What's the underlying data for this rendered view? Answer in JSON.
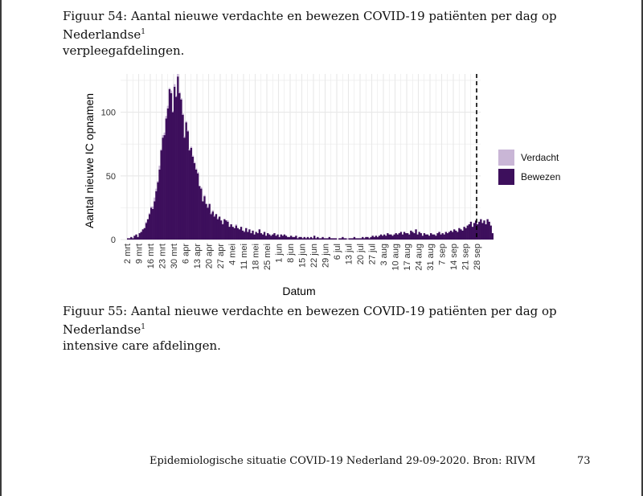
{
  "captions": {
    "fig54_prefix": "Figuur 54: Aantal nieuwe verdachte en bewezen COVID-19 patiënten per dag op Nederlandse",
    "fig54_sup": "1",
    "fig54_line2": "verpleegafdelingen.",
    "fig55_prefix": "Figuur 55: Aantal nieuwe verdachte en bewezen COVID-19 patiënten per dag op Nederlandse",
    "fig55_sup": "1",
    "fig55_line2": "intensive care afdelingen."
  },
  "footer": {
    "text": "Epidemiologische situatie COVID-19 Nederland 29-09-2020. Bron: RIVM",
    "page_number": "73"
  },
  "chart_data": {
    "type": "bar",
    "stacked": true,
    "xlabel": "Datum",
    "ylabel": "Aantal nieuwe IC opnamen",
    "ylim": [
      0,
      130
    ],
    "yticks": [
      0,
      50,
      100
    ],
    "xticks": [
      "2 mrt",
      "9 mrt",
      "16 mrt",
      "23 mrt",
      "30 mrt",
      "6 apr",
      "13 apr",
      "20 apr",
      "27 apr",
      "4 mei",
      "11 mei",
      "18 mei",
      "25 mei",
      "1 jun",
      "8 jun",
      "15 jun",
      "22 jun",
      "29 jun",
      "6 jul",
      "13 jul",
      "20 jul",
      "27 jul",
      "3 aug",
      "10 aug",
      "17 aug",
      "24 aug",
      "31 aug",
      "7 sep",
      "14 sep",
      "21 sep",
      "28 sep"
    ],
    "reference_line": "28 sep",
    "grid": true,
    "legend_position": "right",
    "colors": {
      "Verdacht": "#c9b6d6",
      "Bewezen": "#3d0f5c",
      "grid": "#e8e8e8",
      "refline": "#000000"
    },
    "series": [
      {
        "name": "Verdacht",
        "values": [
          0,
          0,
          0,
          0,
          0,
          0,
          0,
          0,
          0,
          0,
          0,
          0,
          0,
          1,
          0,
          1,
          1,
          2,
          3,
          2,
          1,
          3,
          1,
          2,
          2,
          2,
          2,
          1,
          2,
          1,
          2,
          1,
          2,
          1,
          1,
          1,
          1,
          1,
          1,
          1,
          1,
          1,
          1,
          1,
          1,
          0,
          1,
          0,
          1,
          0,
          1,
          0,
          1,
          1,
          1,
          0,
          1,
          0,
          0,
          1,
          0,
          0,
          1,
          0,
          0,
          0,
          0,
          1,
          0,
          0,
          0,
          0,
          1,
          0,
          0,
          0,
          0,
          0,
          0,
          0,
          0,
          0,
          0,
          0,
          0,
          0,
          0,
          0,
          0,
          0,
          0,
          0,
          0,
          0,
          0,
          0,
          0,
          0,
          0,
          0,
          0,
          0,
          0,
          0,
          0,
          0,
          0,
          0,
          0,
          0,
          0,
          0,
          0,
          0,
          0,
          0,
          0,
          0,
          0,
          0,
          0,
          0,
          0,
          0,
          0,
          0,
          0,
          0,
          0,
          0,
          0,
          0,
          0,
          0,
          1,
          0,
          0,
          0,
          0,
          0,
          0,
          0,
          0,
          0,
          0,
          0,
          0,
          0,
          0,
          0,
          0,
          0,
          0,
          0,
          0,
          0,
          0,
          0,
          0,
          0,
          0,
          0,
          0,
          0,
          0,
          0,
          0,
          0,
          0,
          0,
          0,
          0,
          0,
          0,
          0,
          0,
          0,
          0,
          0,
          0,
          0,
          0,
          0,
          0,
          0,
          0,
          0,
          0,
          0,
          0,
          0,
          0,
          0,
          0,
          0,
          0,
          0,
          0,
          0,
          0,
          0,
          0,
          0,
          0,
          0,
          0,
          0,
          0,
          0,
          0,
          0,
          0,
          0,
          0,
          0,
          0,
          0,
          0,
          0,
          0,
          0,
          0,
          0,
          0,
          0
        ]
      },
      {
        "name": "Bewezen",
        "values": [
          0,
          0,
          1,
          1,
          2,
          1,
          3,
          4,
          2,
          5,
          6,
          8,
          9,
          13,
          16,
          20,
          25,
          24,
          30,
          38,
          45,
          55,
          70,
          80,
          82,
          95,
          103,
          118,
          115,
          100,
          120,
          112,
          128,
          115,
          110,
          98,
          80,
          92,
          85,
          70,
          72,
          65,
          60,
          55,
          52,
          42,
          40,
          30,
          34,
          28,
          25,
          28,
          20,
          22,
          18,
          20,
          16,
          18,
          15,
          12,
          16,
          15,
          14,
          10,
          12,
          10,
          9,
          11,
          9,
          8,
          10,
          7,
          6,
          9,
          6,
          8,
          5,
          7,
          4,
          6,
          5,
          8,
          5,
          4,
          6,
          3,
          5,
          4,
          3,
          4,
          5,
          3,
          4,
          2,
          4,
          3,
          4,
          3,
          2,
          2,
          3,
          2,
          2,
          3,
          1,
          2,
          2,
          1,
          2,
          1,
          2,
          1,
          2,
          1,
          3,
          1,
          2,
          1,
          1,
          2,
          1,
          1,
          1,
          2,
          1,
          1,
          1,
          1,
          0,
          1,
          1,
          2,
          1,
          1,
          0,
          1,
          1,
          1,
          2,
          1,
          1,
          1,
          1,
          2,
          1,
          2,
          2,
          1,
          2,
          3,
          2,
          3,
          2,
          3,
          4,
          3,
          4,
          3,
          5,
          4,
          4,
          3,
          4,
          5,
          4,
          5,
          6,
          4,
          6,
          5,
          5,
          4,
          7,
          6,
          5,
          8,
          4,
          6,
          5,
          3,
          5,
          4,
          4,
          3,
          5,
          4,
          4,
          3,
          5,
          6,
          4,
          5,
          4,
          6,
          5,
          6,
          7,
          6,
          8,
          7,
          6,
          9,
          8,
          7,
          10,
          9,
          11,
          12,
          14,
          10,
          13,
          15,
          12,
          14,
          16,
          13,
          15,
          12,
          16,
          14,
          11,
          5
        ]
      }
    ]
  }
}
